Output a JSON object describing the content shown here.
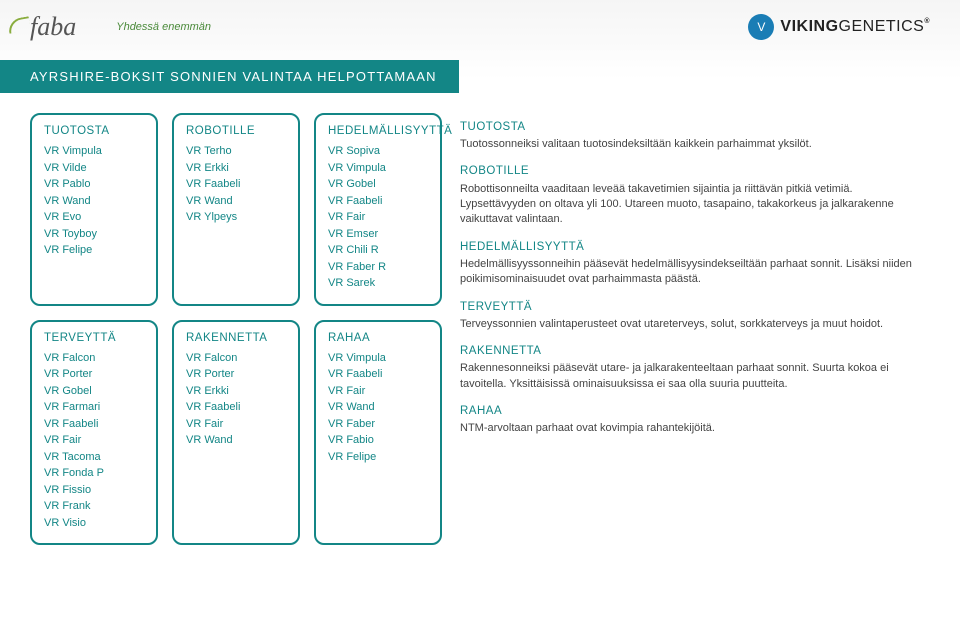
{
  "header": {
    "faba_logo": "faba",
    "slogan": "Yhdessä enemmän",
    "vg_badge": "V",
    "vg_text_bold": "VIKING",
    "vg_text_light": "GENETICS",
    "vg_reg": "®"
  },
  "banner": {
    "title": "AYRSHIRE-BOKSIT SONNIEN VALINTAA HELPOTTAMAAN"
  },
  "colors": {
    "teal": "#138686",
    "green": "#4a8a3a",
    "vg_blue": "#1a7db5"
  },
  "boxes": [
    {
      "title": "TUOTOSTA",
      "items": [
        "VR Vimpula",
        "VR Vilde",
        "VR Pablo",
        "VR Wand",
        "VR Evo",
        "VR Toyboy",
        "VR Felipe"
      ]
    },
    {
      "title": "ROBOTILLE",
      "items": [
        "VR Terho",
        "VR Erkki",
        "VR Faabeli",
        "VR Wand",
        "VR Ylpeys"
      ]
    },
    {
      "title": "HEDELMÄLLISYYTTÄ",
      "items": [
        "VR Sopiva",
        "VR Vimpula",
        "VR Gobel",
        "VR Faabeli",
        "VR Fair",
        "VR Emser",
        "VR Chili R",
        "VR Faber R",
        "VR Sarek"
      ]
    },
    {
      "title": "TERVEYTTÄ",
      "items": [
        "VR Falcon",
        "VR Porter",
        "VR Gobel",
        "VR Farmari",
        "VR Faabeli",
        "VR Fair",
        "VR Tacoma",
        "VR Fonda P",
        "VR Fissio",
        "VR Frank",
        "VR Visio"
      ]
    },
    {
      "title": "RAKENNETTA",
      "items": [
        "VR Falcon",
        "VR Porter",
        "VR Erkki",
        "VR Faabeli",
        "VR Fair",
        "VR Wand"
      ]
    },
    {
      "title": "RAHAA",
      "items": [
        "VR Vimpula",
        "VR Faabeli",
        "VR Fair",
        "VR Wand",
        "VR Faber",
        "VR Fabio",
        "VR Felipe"
      ]
    }
  ],
  "descriptions": [
    {
      "title": "TUOTOSTA",
      "text": "Tuotossonneiksi valitaan tuotosindeksiltään kaikkein parhaimmat yksilöt."
    },
    {
      "title": "ROBOTILLE",
      "text": "Robottisonneilta vaaditaan leveää takavetimien sijaintia ja riittävän pitkiä vetimiä. Lypsettävyyden on oltava yli 100. Utareen muoto, tasapaino, takakorkeus ja jalkarakenne vaikuttavat valintaan."
    },
    {
      "title": "HEDELMÄLLISYYTTÄ",
      "text": "Hedelmällisyyssonneihin pääsevät hedelmällisyysindekseiltään parhaat sonnit. Lisäksi niiden poikimisominaisuudet ovat parhaimmasta päästä."
    },
    {
      "title": "TERVEYTTÄ",
      "text": "Terveyssonnien valintaperusteet ovat utareterveys, solut, sorkkaterveys ja muut hoidot."
    },
    {
      "title": "RAKENNETTA",
      "text": "Rakennesonneiksi pääsevät utare- ja jalkarakenteeltaan parhaat sonnit. Suurta kokoa ei tavoitella. Yksittäisissä ominaisuuksissa ei saa olla suuria puutteita."
    },
    {
      "title": "RAHAA",
      "text": "NTM-arvoltaan parhaat ovat kovimpia rahantekijöitä."
    }
  ]
}
